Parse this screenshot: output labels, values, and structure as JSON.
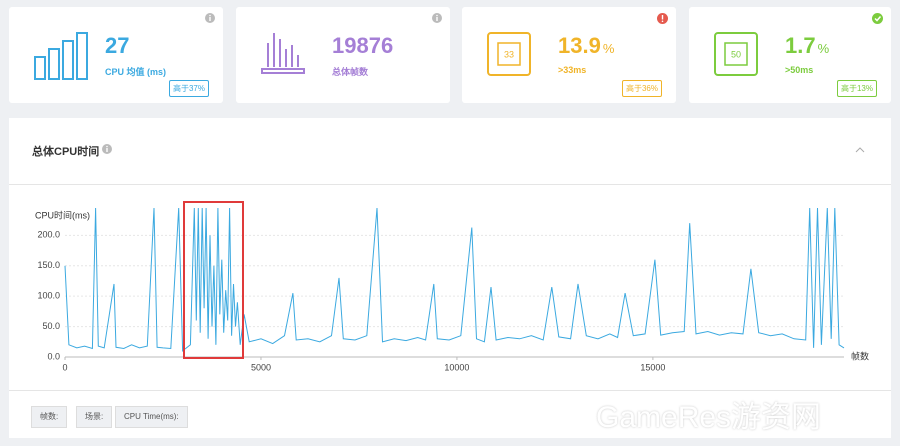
{
  "cards": [
    {
      "value": "27",
      "label": "CPU 均值 (ms)",
      "badge": "高于37%"
    },
    {
      "value": "19876",
      "label": "总体帧数"
    },
    {
      "value": "13.9",
      "unit": "%",
      "label": ">33ms",
      "badge": "高于36%",
      "icon_text": "33"
    },
    {
      "value": "1.7",
      "unit": "%",
      "label": ">50ms",
      "badge": "高于13%",
      "icon_text": "50"
    }
  ],
  "panel_title": "总体CPU时间",
  "buttons": [
    "帧数:",
    "场景:",
    "CPU Time(ms):"
  ],
  "watermark": "GameRes游资网",
  "chart_data": {
    "type": "line",
    "y_label": "CPU时间(ms)",
    "x_label": "帧数",
    "x": [
      0,
      100,
      300,
      500,
      700,
      780,
      850,
      1000,
      1250,
      1300,
      1500,
      1700,
      1900,
      2100,
      2270,
      2350,
      2500,
      2700,
      2900,
      3000,
      3200,
      3300,
      3350,
      3400,
      3450,
      3500,
      3550,
      3600,
      3650,
      3700,
      3750,
      3800,
      3850,
      3900,
      3950,
      4000,
      4050,
      4100,
      4150,
      4200,
      4250,
      4300,
      4350,
      4400,
      4470,
      4570,
      4700,
      5000,
      5300,
      5600,
      5816,
      5900,
      6200,
      6500,
      6800,
      6990,
      7100,
      7400,
      7700,
      7960,
      8100,
      8400,
      8700,
      9000,
      9200,
      9410,
      9500,
      9800,
      10100,
      10380,
      10500,
      10700,
      10870,
      11000,
      11300,
      11600,
      11900,
      12200,
      12420,
      12600,
      12900,
      13090,
      13300,
      13600,
      13900,
      14100,
      14290,
      14500,
      14800,
      15050,
      15200,
      15500,
      15800,
      15940,
      16100,
      16400,
      16700,
      17000,
      17300,
      17500,
      17700,
      18000,
      18300,
      18600,
      18900,
      19000,
      19100,
      19200,
      19300,
      19450,
      19550,
      19640,
      19750,
      19876
    ],
    "series": [
      {
        "color": "#3ba9e0",
        "values": [
          150,
          20,
          15,
          18,
          14,
          245,
          18,
          15,
          120,
          16,
          14,
          20,
          15,
          18,
          245,
          16,
          15,
          14,
          245,
          10,
          20,
          245,
          60,
          245,
          40,
          245,
          80,
          245,
          30,
          200,
          50,
          150,
          20,
          245,
          70,
          160,
          40,
          110,
          60,
          245,
          35,
          120,
          50,
          90,
          20,
          70,
          25,
          30,
          22,
          35,
          105,
          28,
          30,
          25,
          35,
          130,
          30,
          28,
          35,
          245,
          25,
          30,
          27,
          32,
          28,
          120,
          30,
          28,
          35,
          213,
          30,
          25,
          115,
          28,
          32,
          30,
          35,
          28,
          115,
          33,
          30,
          120,
          35,
          30,
          38,
          32,
          105,
          35,
          38,
          160,
          36,
          40,
          42,
          220,
          38,
          42,
          36,
          40,
          38,
          145,
          40,
          35,
          38,
          30,
          28,
          245,
          15,
          245,
          20,
          245,
          30,
          245,
          20,
          15
        ]
      }
    ],
    "xlim": [
      0,
      19876
    ],
    "ylim": [
      0,
      245
    ],
    "xticks": [
      0,
      5000,
      10000,
      15000
    ],
    "yticks": [
      {
        "value": 0,
        "label": "0.0"
      },
      {
        "value": 50,
        "label": "50.0"
      },
      {
        "value": 100,
        "label": "100.0"
      },
      {
        "value": 150,
        "label": "150.0"
      },
      {
        "value": 200,
        "label": "200.0"
      }
    ],
    "grid": true
  }
}
